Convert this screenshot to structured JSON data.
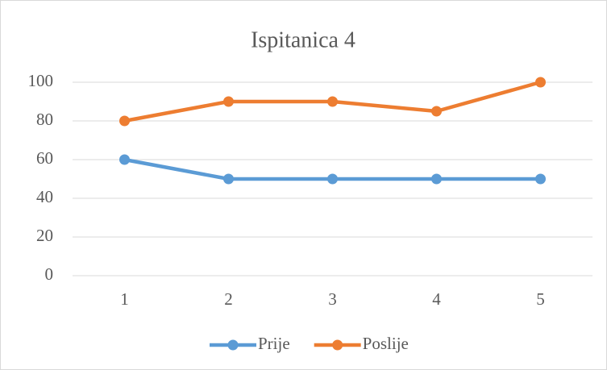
{
  "chart_data": {
    "type": "line",
    "title": "Ispitanica 4",
    "categories": [
      "1",
      "2",
      "3",
      "4",
      "5"
    ],
    "series": [
      {
        "name": "Prije",
        "color": "#5b9bd5",
        "values": [
          60,
          50,
          50,
          50,
          50
        ]
      },
      {
        "name": "Poslije",
        "color": "#ed7d31",
        "values": [
          80,
          90,
          90,
          85,
          100
        ]
      }
    ],
    "ylim": [
      0,
      100
    ],
    "yticks": [
      0,
      20,
      40,
      60,
      80,
      100
    ],
    "grid": true,
    "legend": "bottom"
  }
}
